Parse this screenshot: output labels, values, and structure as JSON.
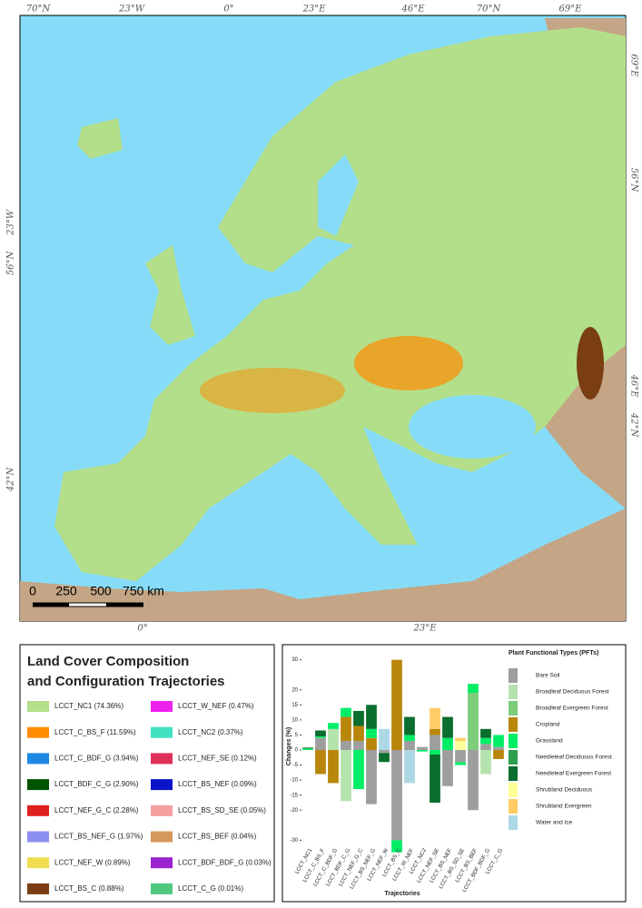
{
  "map": {
    "top_labels": [
      "70°N",
      "23°W",
      "0°",
      "23°E",
      "46°E",
      "70°N",
      "69°E"
    ],
    "left_labels": [
      "23°W",
      "56°N",
      "42°N"
    ],
    "right_labels": [
      "69°E",
      "56°N",
      "46°E",
      "42°N"
    ],
    "bottom_labels": [
      "0°",
      "23°E"
    ],
    "scale_labels": [
      "0",
      "250",
      "500",
      "750 km"
    ]
  },
  "legend": {
    "title": [
      "Land Cover Composition",
      "and Configuration Trajectories"
    ],
    "items": [
      {
        "label": "LCCT_NC1 (74.36%)",
        "color": "#b3df8a"
      },
      {
        "label": "LCCT_C_BS_F (11.59%)",
        "color": "#ff8c00"
      },
      {
        "label": "LCCT_C_BDF_G (3.94%)",
        "color": "#1e88e5"
      },
      {
        "label": "LCCT_BDF_C_G (2.90%)",
        "color": "#005400"
      },
      {
        "label": "LCCT_NEF_G_C (2.28%)",
        "color": "#e02020"
      },
      {
        "label": "LCCT_BS_NEF_G (1.97%)",
        "color": "#8c8ff0"
      },
      {
        "label": "LCCT_NEF_W (0.89%)",
        "color": "#f0dc50"
      },
      {
        "label": "LCCT_BS_C (0.88%)",
        "color": "#7a3e12"
      },
      {
        "label": "LCCT_W_NEF (0.47%)",
        "color": "#ee22ee"
      },
      {
        "label": "LCCT_NC2 (0.37%)",
        "color": "#40e0c0"
      },
      {
        "label": "LCCT_NEF_SE (0.12%)",
        "color": "#e0305a"
      },
      {
        "label": "LCCT_BS_NEF (0.09%)",
        "color": "#0a14c8"
      },
      {
        "label": "LCCT_BS_SD_SE (0.05%)",
        "color": "#f4a0a0"
      },
      {
        "label": "LCCT_BS_BEF (0.04%)",
        "color": "#d4985a"
      },
      {
        "label": "LCCT_BDF_BDF_G (0.03%)",
        "color": "#9a22d0"
      },
      {
        "label": "LCCT_C_G (0.01%)",
        "color": "#50c880"
      }
    ]
  },
  "chart_data": {
    "type": "stacked_bar",
    "y_label": "Changes (%)",
    "x_label": "Trajectories",
    "legend_title": "Plant Functional Types (PFTs)",
    "categories": [
      "LCCT_NC1",
      "LCCT_C_BS_F",
      "LCCT_C_BDF_G",
      "LCCT_BDF_C_G",
      "LCCT_NEF_G_C",
      "LCCT_BS_NEF_G",
      "LCCT_NEF_W",
      "LCCT_BS_C",
      "LCCT_W_NEF",
      "LCCT_NC2",
      "LCCT_NEF_SE",
      "LCCT_BS_NEF",
      "LCCT_BS_SD_SE",
      "LCCT_BS_BEF",
      "LCCT_BDF_BDF_G",
      "LCCT_C_G"
    ],
    "ylim": [
      -32,
      32
    ],
    "yticks": [
      -30,
      -20,
      -15,
      -10,
      -5,
      0,
      5,
      10,
      15,
      20,
      30
    ],
    "series": [
      {
        "name": "Bare Soil",
        "color": "#9e9e9e",
        "values": [
          0,
          4,
          0,
          3,
          3,
          -18,
          -1,
          -30,
          3,
          1,
          5,
          -12,
          -4,
          -20,
          2,
          1
        ]
      },
      {
        "name": "Broadleaf Deciduous Forest",
        "color": "#b5e3ad",
        "values": [
          0,
          0,
          7,
          -17,
          0,
          0,
          0,
          0,
          0,
          0,
          0,
          0,
          0,
          0,
          -8,
          0
        ]
      },
      {
        "name": "Broadleaf Evergreen Forest",
        "color": "#7ccc7c",
        "values": [
          0,
          0,
          0,
          0,
          0,
          0,
          0,
          0,
          0,
          0,
          0,
          0,
          0,
          19,
          0,
          0
        ]
      },
      {
        "name": "Cropland",
        "color": "#b8860b",
        "values": [
          0,
          -8,
          -11,
          8,
          5,
          4,
          0,
          30,
          0,
          0,
          2,
          0,
          0,
          0,
          0,
          -3
        ]
      },
      {
        "name": "Grassland",
        "color": "#00ee66",
        "values": [
          0.5,
          0.5,
          2,
          3,
          -13,
          3,
          0,
          -4,
          2,
          -0.5,
          -1.5,
          4,
          -1,
          3,
          2,
          4
        ]
      },
      {
        "name": "Needleleaf Deciduous Forest",
        "color": "#2e9e4f",
        "values": [
          0,
          0,
          0,
          0,
          0,
          0,
          0,
          0,
          0,
          0,
          0,
          0,
          0,
          0,
          0,
          0
        ]
      },
      {
        "name": "Needleleaf Evergreen Forest",
        "color": "#0a6e2e",
        "values": [
          0.3,
          2,
          0,
          0,
          5,
          8,
          -3,
          0,
          6,
          0,
          -16,
          7,
          0,
          0,
          3,
          0
        ]
      },
      {
        "name": "Shrubland Deciduous",
        "color": "#ffff99",
        "values": [
          0,
          0,
          0,
          0,
          0,
          0,
          0,
          0,
          0,
          0,
          0,
          0,
          3,
          0,
          0,
          0
        ]
      },
      {
        "name": "Shrubland Evergreen",
        "color": "#ffcc66",
        "values": [
          0,
          0,
          0,
          0,
          0,
          0,
          0,
          0,
          0,
          0,
          7,
          0,
          1,
          0,
          0,
          0
        ]
      },
      {
        "name": "Water and Ice",
        "color": "#add8e6",
        "values": [
          0,
          0,
          0,
          0,
          0,
          0,
          7,
          0,
          -11,
          0,
          0,
          0,
          0,
          0,
          0,
          0
        ]
      }
    ]
  }
}
